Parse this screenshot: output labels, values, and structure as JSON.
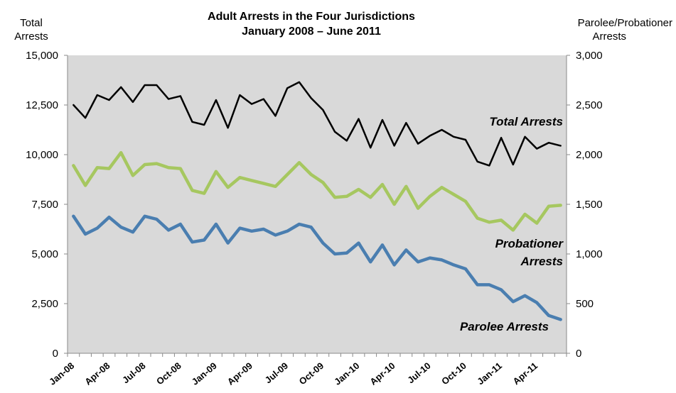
{
  "chart_data": {
    "type": "line",
    "title": "Adult Arrests in the Four Jurisdictions",
    "subtitle": "January 2008 – June 2011",
    "y_left_label": [
      "Total",
      "Arrests"
    ],
    "y_right_label": [
      "Parolee/Probationer",
      "Arrests"
    ],
    "y_left_range": [
      0,
      15000
    ],
    "y_right_range": [
      0,
      3000
    ],
    "y_left_ticks": [
      "0",
      "2,500",
      "5,000",
      "7,500",
      "10,000",
      "12,500",
      "15,000"
    ],
    "y_right_ticks": [
      "0",
      "500",
      "1,000",
      "1,500",
      "2,000",
      "2,500",
      "3,000"
    ],
    "x_tick_labels": [
      "Jan-08",
      "Apr-08",
      "Jul-08",
      "Oct-08",
      "Jan-09",
      "Apr-09",
      "Jul-09",
      "Oct-09",
      "Jan-10",
      "Apr-10",
      "Jul-10",
      "Oct-10",
      "Jan-11",
      "Apr-11"
    ],
    "months": [
      "Jan-08",
      "Feb-08",
      "Mar-08",
      "Apr-08",
      "May-08",
      "Jun-08",
      "Jul-08",
      "Aug-08",
      "Sep-08",
      "Oct-08",
      "Nov-08",
      "Dec-08",
      "Jan-09",
      "Feb-09",
      "Mar-09",
      "Apr-09",
      "May-09",
      "Jun-09",
      "Jul-09",
      "Aug-09",
      "Sep-09",
      "Oct-09",
      "Nov-09",
      "Dec-09",
      "Jan-10",
      "Feb-10",
      "Mar-10",
      "Apr-10",
      "May-10",
      "Jun-10",
      "Jul-10",
      "Aug-10",
      "Sep-10",
      "Oct-10",
      "Nov-10",
      "Dec-10",
      "Jan-11",
      "Feb-11",
      "Mar-11",
      "Apr-11",
      "May-11",
      "Jun-11"
    ],
    "grid": false,
    "series": [
      {
        "name": "Total Arrests",
        "axis": "left",
        "color": "#000000",
        "label_lines": [
          "Total Arrests"
        ],
        "values": [
          12500,
          11850,
          13000,
          12750,
          13400,
          12650,
          13500,
          13500,
          12800,
          12950,
          11650,
          11500,
          12750,
          11350,
          13000,
          12550,
          12800,
          11950,
          13350,
          13650,
          12850,
          12250,
          11150,
          10700,
          11800,
          10350,
          11750,
          10450,
          11600,
          10550,
          10950,
          11250,
          10900,
          10750,
          9650,
          9450,
          10850,
          9500,
          10900,
          10300,
          10600,
          10450
        ]
      },
      {
        "name": "Probationer Arrests",
        "axis": "right",
        "color": "#a6c760",
        "label_lines": [
          "Probationer",
          "Arrests"
        ],
        "values": [
          1890,
          1690,
          1870,
          1860,
          2020,
          1790,
          1900,
          1910,
          1870,
          1860,
          1640,
          1610,
          1830,
          1670,
          1770,
          1740,
          1710,
          1680,
          1800,
          1920,
          1800,
          1720,
          1570,
          1580,
          1650,
          1570,
          1700,
          1500,
          1680,
          1460,
          1580,
          1670,
          1600,
          1530,
          1360,
          1320,
          1340,
          1240,
          1400,
          1310,
          1480,
          1490
        ]
      },
      {
        "name": "Parolee Arrests",
        "axis": "right",
        "color": "#4a7eb0",
        "label_lines": [
          "Parolee Arrests"
        ],
        "values": [
          1380,
          1200,
          1260,
          1370,
          1270,
          1220,
          1380,
          1350,
          1240,
          1300,
          1120,
          1140,
          1300,
          1110,
          1260,
          1230,
          1250,
          1190,
          1230,
          1300,
          1270,
          1110,
          1000,
          1010,
          1110,
          920,
          1090,
          890,
          1040,
          920,
          960,
          940,
          890,
          850,
          690,
          690,
          640,
          520,
          580,
          510,
          380,
          340
        ]
      }
    ]
  }
}
